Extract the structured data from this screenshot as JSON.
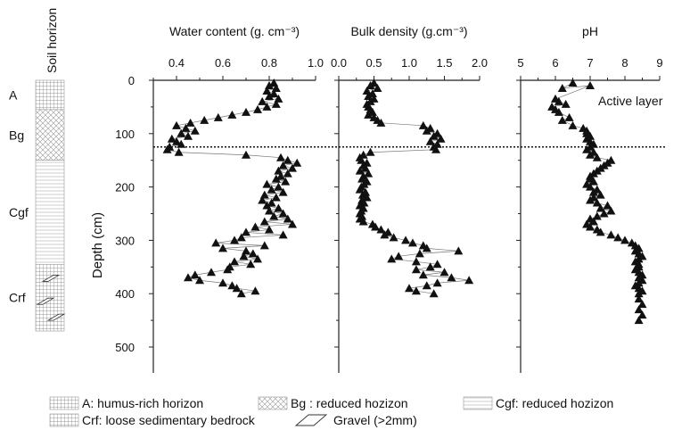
{
  "chart_data": [
    {
      "type": "scatter",
      "title": "Water content (g. cm⁻³)",
      "xlabel": "Water content (g. cm⁻³)",
      "ylabel": "Depth (cm)",
      "xlim": [
        0.3,
        1.0
      ],
      "ylim": [
        500,
        0
      ],
      "xticks": [
        "0.4",
        "0.6",
        "0.8",
        "1.0"
      ],
      "series": [
        {
          "x": [
            0.82,
            0.8,
            0.83,
            0.79,
            0.82,
            0.8,
            0.84,
            0.77,
            0.83,
            0.79,
            0.75,
            0.7,
            0.64,
            0.58,
            0.52,
            0.46,
            0.4,
            0.44,
            0.48,
            0.42,
            0.45,
            0.38,
            0.4,
            0.42,
            0.37,
            0.36,
            0.41,
            0.7,
            0.85,
            0.88,
            0.92,
            0.86,
            0.9,
            0.84,
            0.88,
            0.85,
            0.83,
            0.87,
            0.79,
            0.84,
            0.81,
            0.86,
            0.78,
            0.83,
            0.77,
            0.81,
            0.79,
            0.84,
            0.8,
            0.86,
            0.82,
            0.88,
            0.78,
            0.9,
            0.74,
            0.8,
            0.7,
            0.86,
            0.68,
            0.65,
            0.57,
            0.78,
            0.6,
            0.7,
            0.73,
            0.69,
            0.75,
            0.65,
            0.72,
            0.63,
            0.62,
            0.55,
            0.48,
            0.45,
            0.5,
            0.6,
            0.64,
            0.66,
            0.74,
            0.68
          ],
          "y": [
            5,
            10,
            15,
            20,
            25,
            30,
            35,
            40,
            45,
            50,
            55,
            60,
            65,
            70,
            75,
            80,
            85,
            90,
            95,
            100,
            105,
            110,
            115,
            120,
            125,
            130,
            135,
            140,
            145,
            150,
            155,
            160,
            165,
            170,
            175,
            180,
            185,
            190,
            195,
            200,
            205,
            210,
            215,
            220,
            225,
            230,
            235,
            240,
            245,
            250,
            255,
            260,
            265,
            270,
            275,
            280,
            285,
            290,
            295,
            300,
            305,
            310,
            315,
            320,
            325,
            330,
            335,
            340,
            345,
            350,
            355,
            360,
            365,
            370,
            375,
            380,
            385,
            390,
            395,
            400
          ]
        }
      ]
    },
    {
      "type": "scatter",
      "title": "Bulk density (g.cm⁻³)",
      "xlabel": "Bulk density (g.cm⁻³)",
      "ylabel": "Depth (cm)",
      "xlim": [
        0.0,
        2.0
      ],
      "ylim": [
        500,
        0
      ],
      "xticks": [
        "0.0",
        "0.5",
        "1.0",
        "1.5",
        "2.0"
      ],
      "series": [
        {
          "x": [
            0.5,
            0.45,
            0.55,
            0.4,
            0.48,
            0.42,
            0.5,
            0.45,
            0.4,
            0.42,
            0.45,
            0.48,
            0.42,
            0.5,
            0.55,
            0.6,
            1.2,
            1.3,
            1.25,
            1.4,
            1.35,
            1.45,
            1.3,
            1.4,
            1.35,
            1.38,
            0.45,
            0.35,
            0.3,
            0.32,
            0.4,
            0.35,
            0.38,
            0.3,
            0.42,
            0.35,
            0.33,
            0.4,
            0.36,
            0.32,
            0.3,
            0.38,
            0.34,
            0.4,
            0.33,
            0.36,
            0.3,
            0.35,
            0.32,
            0.3,
            0.33,
            0.3,
            0.35,
            0.48,
            0.52,
            0.6,
            0.7,
            0.65,
            0.78,
            0.95,
            1.05,
            1.2,
            1.25,
            1.7,
            1.15,
            0.85,
            0.75,
            1.1,
            1.4,
            1.3,
            1.1,
            1.5,
            1.2,
            1.6,
            1.85,
            1.4,
            1.25,
            1.0,
            1.1,
            1.35
          ],
          "y": [
            5,
            10,
            15,
            20,
            25,
            30,
            35,
            40,
            45,
            50,
            55,
            60,
            65,
            70,
            75,
            80,
            85,
            90,
            95,
            100,
            105,
            110,
            115,
            120,
            125,
            130,
            135,
            140,
            145,
            150,
            155,
            160,
            165,
            170,
            175,
            180,
            185,
            190,
            195,
            200,
            205,
            210,
            215,
            220,
            225,
            230,
            235,
            240,
            245,
            250,
            255,
            260,
            265,
            270,
            275,
            280,
            285,
            290,
            295,
            300,
            305,
            310,
            315,
            320,
            325,
            330,
            335,
            340,
            345,
            350,
            355,
            360,
            365,
            370,
            375,
            380,
            385,
            390,
            395,
            400
          ]
        }
      ]
    },
    {
      "type": "scatter",
      "title": "pH",
      "xlabel": "pH",
      "ylabel": "Depth (cm)",
      "xlim": [
        5,
        9
      ],
      "ylim": [
        500,
        0
      ],
      "xticks": [
        "5",
        "6",
        "7",
        "8",
        "9"
      ],
      "annotation": "Active layer",
      "series": [
        {
          "x": [
            6.5,
            6.2,
            7.0,
            6.0,
            6.1,
            6.3,
            5.9,
            6.0,
            6.1,
            6.4,
            6.2,
            6.5,
            6.8,
            6.9,
            6.9,
            7.0,
            6.9,
            7.0,
            7.1,
            7.0,
            6.9,
            7.1,
            7.0,
            7.2,
            7.6,
            7.5,
            7.4,
            7.3,
            7.2,
            7.1,
            7.0,
            7.0,
            7.1,
            6.9,
            7.0,
            7.2,
            7.1,
            7.3,
            7.1,
            7.0,
            7.2,
            7.5,
            7.3,
            7.6,
            7.4,
            7.2,
            7.0,
            7.1,
            6.9,
            7.0,
            7.2,
            7.3,
            7.6,
            7.8,
            8.0,
            8.2,
            8.3,
            8.4,
            8.3,
            8.4,
            8.5,
            8.4,
            8.3,
            8.4,
            8.4,
            8.3,
            8.4,
            8.5,
            8.4,
            8.5,
            8.4,
            8.3,
            8.4,
            8.5,
            8.4,
            8.4,
            8.5,
            8.4,
            8.5,
            8.4
          ],
          "y": [
            5,
            15,
            10,
            35,
            40,
            45,
            50,
            55,
            60,
            70,
            75,
            85,
            90,
            95,
            100,
            105,
            110,
            115,
            120,
            125,
            130,
            135,
            140,
            145,
            150,
            155,
            160,
            165,
            170,
            175,
            180,
            185,
            190,
            195,
            200,
            205,
            210,
            215,
            220,
            225,
            230,
            235,
            240,
            245,
            250,
            255,
            260,
            265,
            270,
            275,
            280,
            285,
            290,
            295,
            300,
            305,
            310,
            315,
            320,
            325,
            330,
            335,
            340,
            345,
            350,
            355,
            360,
            365,
            370,
            375,
            380,
            385,
            390,
            395,
            400,
            410,
            420,
            430,
            440,
            450
          ]
        }
      ]
    }
  ],
  "depth_axis": {
    "label": "Depth (cm)",
    "ticks": [
      "0",
      "100",
      "200",
      "300",
      "400",
      "500"
    ]
  },
  "dotted_line_depth": 125,
  "soil_column": {
    "title": "Soil horizon",
    "horizons": [
      {
        "label": "A",
        "top": 0,
        "bottom": 55,
        "pattern": "grid"
      },
      {
        "label": "Bg",
        "top": 55,
        "bottom": 150,
        "pattern": "cross"
      },
      {
        "label": "Cgf",
        "top": 150,
        "bottom": 345,
        "pattern": "hlines"
      },
      {
        "label": "Crf",
        "top": 345,
        "bottom": 470,
        "pattern": "grid-gravel"
      }
    ]
  },
  "legend": [
    {
      "pattern": "grid",
      "label": "A: humus-rich horizon"
    },
    {
      "pattern": "cross",
      "label": "Bg : reduced hozizon"
    },
    {
      "pattern": "hlines",
      "label": "Cgf: reduced hozizon"
    },
    {
      "pattern": "grid",
      "label": "Crf: loose sedimentary bedrock"
    },
    {
      "pattern": "gravel",
      "label": "Gravel (>2mm)"
    }
  ]
}
